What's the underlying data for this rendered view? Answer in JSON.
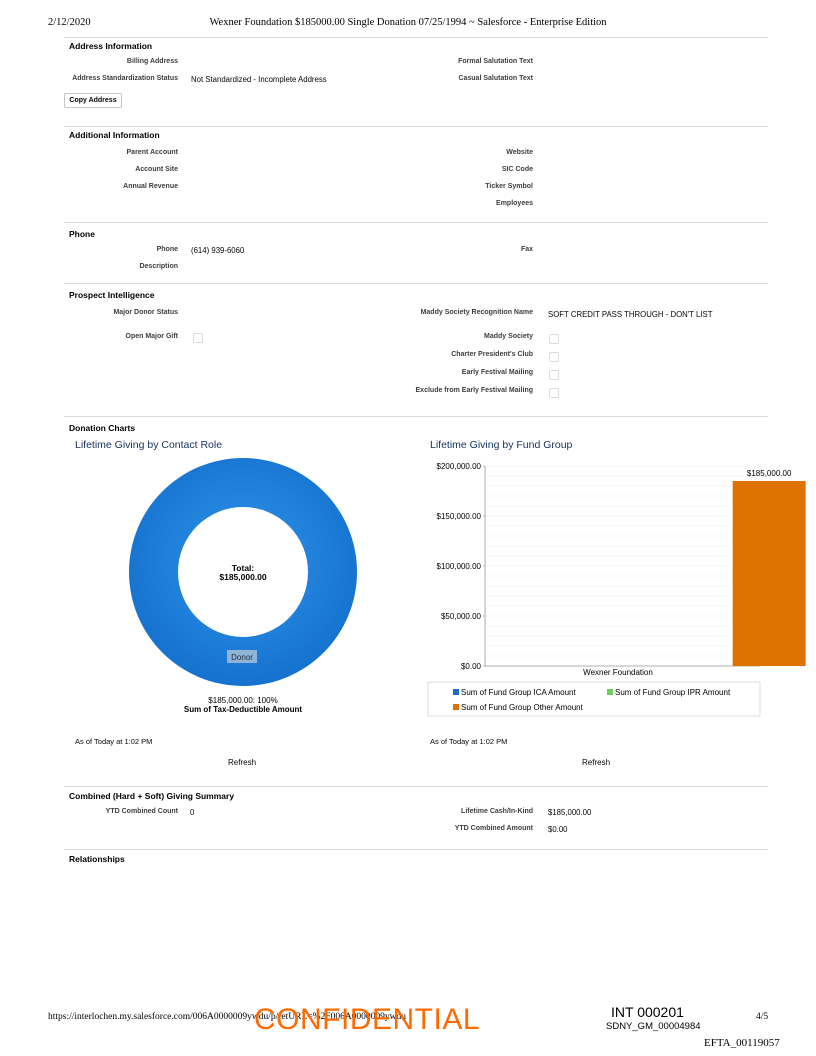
{
  "print_header": {
    "date": "2/12/2020",
    "title": "Wexner Foundation $185000.00 Single Donation 07/25/1994 ~ Salesforce - Enterprise Edition"
  },
  "address_info": {
    "title": "Address Information",
    "billing_address_label": "Billing Address",
    "standardization_label": "Address Standardization Status",
    "standardization_value": "Not Standardized - Incomplete Address",
    "formal_salutation_label": "Formal Salutation Text",
    "casual_salutation_label": "Casual Salutation Text",
    "copy_address_button": "Copy Address"
  },
  "additional_info": {
    "title": "Additional Information",
    "parent_account_label": "Parent Account",
    "account_site_label": "Account Site",
    "annual_revenue_label": "Annual Revenue",
    "website_label": "Website",
    "sic_code_label": "SIC Code",
    "ticker_symbol_label": "Ticker Symbol",
    "employees_label": "Employees"
  },
  "phone_section": {
    "title": "Phone",
    "phone_label": "Phone",
    "phone_value": "(614) 939-6060",
    "description_label": "Description",
    "fax_label": "Fax"
  },
  "prospect": {
    "title": "Prospect Intelligence",
    "major_donor_label": "Major Donor Status",
    "open_major_gift_label": "Open Major Gift",
    "maddy_recognition_label": "Maddy Society Recognition Name",
    "maddy_recognition_value": "SOFT CREDIT PASS THROUGH - DON'T LIST",
    "maddy_society_label": "Maddy Society",
    "charter_president_label": "Charter President's Club",
    "early_festival_label": "Early Festival Mailing",
    "exclude_festival_label": "Exclude from Early Festival Mailing"
  },
  "donation_charts": {
    "title": "Donation Charts",
    "left_title": "Lifetime Giving by Contact Role",
    "right_title": "Lifetime Giving by Fund Group",
    "left_asof": "As of Today at 1:02 PM",
    "right_asof": "As of Today at 1:02 PM",
    "refresh_label": "Refresh"
  },
  "chart_data": [
    {
      "type": "pie",
      "title": "Lifetime Giving by Contact Role",
      "center_label": "Total:",
      "center_value": "$185,000.00",
      "slices": [
        {
          "name": "Donor",
          "value": 185000,
          "percent": 100
        }
      ],
      "slice_caption": "$185,000.00: 100%",
      "measure_label": "Sum of Tax-Deductible Amount",
      "colors": {
        "slice": "#1b86e2"
      }
    },
    {
      "type": "bar",
      "title": "Lifetime Giving by Fund Group",
      "categories": [
        "Wexner Foundation"
      ],
      "series": [
        {
          "name": "Sum of Fund Group ICA Amount",
          "values": [
            0
          ],
          "color": "#1a6fc2"
        },
        {
          "name": "Sum of Fund Group IPR Amount",
          "values": [
            0
          ],
          "color": "#6ccf5e"
        },
        {
          "name": "Sum of Fund Group Other Amount",
          "values": [
            185000
          ],
          "color": "#e07201"
        }
      ],
      "data_labels": [
        "$185,000.00"
      ],
      "y_ticks": [
        "$200,000.00",
        "$150,000.00",
        "$100,000.00",
        "$50,000.00",
        "$0.00"
      ],
      "ylim": [
        0,
        200000
      ],
      "legend_position": "bottom"
    }
  ],
  "combined": {
    "title": "Combined (Hard + Soft) Giving Summary",
    "ytd_count_label": "YTD Combined Count",
    "ytd_count_value": "0",
    "lifetime_cash_label": "Lifetime Cash/In-Kind",
    "lifetime_cash_value": "$185,000.00",
    "ytd_amount_label": "YTD Combined Amount",
    "ytd_amount_value": "$0.00"
  },
  "relationships": {
    "title": "Relationships"
  },
  "footer": {
    "url": "https://interlochen.my.salesforce.com/006A0000009ywdu/p/retURL=%2F006A0000009ywdu",
    "confidential": "CONFIDENTIAL",
    "int_code": "INT 000201",
    "sdny": "SDNY_GM_00004984",
    "page": "4/5",
    "efta": "EFTA_00119057"
  }
}
